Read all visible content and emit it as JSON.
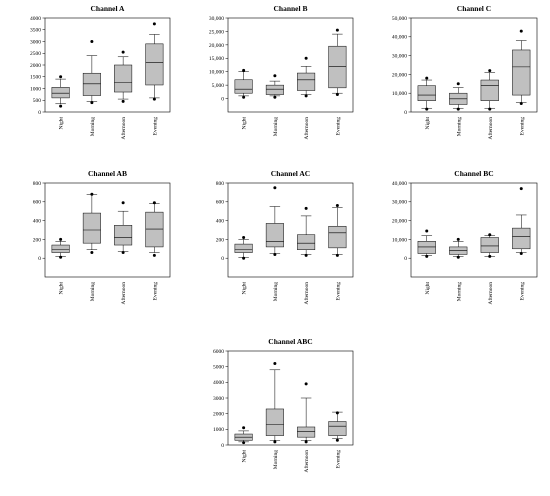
{
  "figure": {
    "chart_data": [
      {
        "type": "box",
        "title": "Channel A",
        "categories": [
          "Night",
          "Morning",
          "Afternoon",
          "Evening"
        ],
        "ylim": [
          0,
          4000
        ],
        "yticks": [
          0,
          500,
          1000,
          1500,
          2000,
          2500,
          3000,
          3500,
          4000
        ],
        "ytick_labels": [
          "0",
          "500",
          "1000",
          "1500",
          "2000",
          "2500",
          "3000",
          "3500",
          "4000"
        ],
        "boxes": [
          {
            "whisker_low": 350,
            "q1": 600,
            "median": 800,
            "q3": 1050,
            "whisker_high": 1400,
            "outliers": [
              250,
              1500
            ]
          },
          {
            "whisker_low": 450,
            "q1": 700,
            "median": 1200,
            "q3": 1650,
            "whisker_high": 2400,
            "outliers": [
              400,
              3000
            ]
          },
          {
            "whisker_low": 550,
            "q1": 850,
            "median": 1250,
            "q3": 2000,
            "whisker_high": 2350,
            "outliers": [
              450,
              2550
            ]
          },
          {
            "whisker_low": 600,
            "q1": 1150,
            "median": 2100,
            "q3": 2900,
            "whisker_high": 3300,
            "outliers": [
              550,
              3750
            ]
          }
        ]
      },
      {
        "type": "box",
        "title": "Channel B",
        "categories": [
          "Night",
          "Morning",
          "Afternoon",
          "Evening"
        ],
        "ylim": [
          -5000,
          30000
        ],
        "yticks": [
          0,
          5000,
          10000,
          15000,
          20000,
          25000,
          30000
        ],
        "ytick_labels": [
          "0",
          "5,000",
          "10,000",
          "15,000",
          "20,000",
          "25,000",
          "30,000"
        ],
        "boxes": [
          {
            "whisker_low": 1000,
            "q1": 2000,
            "median": 3500,
            "q3": 7000,
            "whisker_high": 10000,
            "outliers": [
              500,
              10500
            ]
          },
          {
            "whisker_low": 1000,
            "q1": 1500,
            "median": 3500,
            "q3": 5000,
            "whisker_high": 6500,
            "outliers": [
              500,
              8500
            ]
          },
          {
            "whisker_low": 1500,
            "q1": 3000,
            "median": 7000,
            "q3": 9500,
            "whisker_high": 12000,
            "outliers": [
              1000,
              15000
            ]
          },
          {
            "whisker_low": 2000,
            "q1": 4000,
            "median": 12000,
            "q3": 19500,
            "whisker_high": 24000,
            "outliers": [
              1500,
              25500
            ]
          }
        ]
      },
      {
        "type": "box",
        "title": "Channel C",
        "categories": [
          "Night",
          "Morning",
          "Afternoon",
          "Evening"
        ],
        "ylim": [
          0,
          50000
        ],
        "yticks": [
          0,
          10000,
          20000,
          30000,
          40000,
          50000
        ],
        "ytick_labels": [
          "0",
          "10,000",
          "20,000",
          "30,000",
          "40,000",
          "50,000"
        ],
        "boxes": [
          {
            "whisker_low": 2000,
            "q1": 6000,
            "median": 9000,
            "q3": 14000,
            "whisker_high": 17000,
            "outliers": [
              1500,
              18000
            ]
          },
          {
            "whisker_low": 2000,
            "q1": 4000,
            "median": 7000,
            "q3": 10000,
            "whisker_high": 13000,
            "outliers": [
              1500,
              15000
            ]
          },
          {
            "whisker_low": 2000,
            "q1": 6000,
            "median": 14000,
            "q3": 17000,
            "whisker_high": 21000,
            "outliers": [
              1500,
              22000
            ]
          },
          {
            "whisker_low": 5000,
            "q1": 9000,
            "median": 24000,
            "q3": 33000,
            "whisker_high": 38000,
            "outliers": [
              4500,
              43000
            ]
          }
        ]
      },
      {
        "type": "box",
        "title": "Channel AB",
        "categories": [
          "Night",
          "Morning",
          "Afternoon",
          "Evening"
        ],
        "ylim": [
          -200,
          800
        ],
        "yticks": [
          0,
          200,
          400,
          600,
          800
        ],
        "ytick_labels": [
          "0",
          "200",
          "400",
          "600",
          "800"
        ],
        "boxes": [
          {
            "whisker_low": 20,
            "q1": 60,
            "median": 90,
            "q3": 140,
            "whisker_high": 180,
            "outliers": [
              10,
              200
            ]
          },
          {
            "whisker_low": 90,
            "q1": 160,
            "median": 300,
            "q3": 480,
            "whisker_high": 680,
            "outliers": [
              60,
              680
            ]
          },
          {
            "whisker_low": 70,
            "q1": 140,
            "median": 220,
            "q3": 350,
            "whisker_high": 500,
            "outliers": [
              60,
              590
            ]
          },
          {
            "whisker_low": 60,
            "q1": 120,
            "median": 310,
            "q3": 490,
            "whisker_high": 580,
            "outliers": [
              30,
              590
            ]
          }
        ]
      },
      {
        "type": "box",
        "title": "Channel AC",
        "categories": [
          "Night",
          "Morning",
          "Afternoon",
          "Evening"
        ],
        "ylim": [
          -200,
          800
        ],
        "yticks": [
          0,
          200,
          400,
          600,
          800
        ],
        "ytick_labels": [
          "0",
          "200",
          "400",
          "600",
          "800"
        ],
        "boxes": [
          {
            "whisker_low": 10,
            "q1": 60,
            "median": 90,
            "q3": 150,
            "whisker_high": 200,
            "outliers": [
              0,
              220
            ]
          },
          {
            "whisker_low": 50,
            "q1": 120,
            "median": 180,
            "q3": 370,
            "whisker_high": 550,
            "outliers": [
              40,
              750
            ]
          },
          {
            "whisker_low": 40,
            "q1": 90,
            "median": 160,
            "q3": 250,
            "whisker_high": 450,
            "outliers": [
              30,
              530
            ]
          },
          {
            "whisker_low": 40,
            "q1": 110,
            "median": 270,
            "q3": 340,
            "whisker_high": 540,
            "outliers": [
              30,
              560
            ]
          }
        ]
      },
      {
        "type": "box",
        "title": "Channel BC",
        "categories": [
          "Night",
          "Morning",
          "Afternoon",
          "Evening"
        ],
        "ylim": [
          -10000,
          40000
        ],
        "yticks": [
          0,
          10000,
          20000,
          30000,
          40000
        ],
        "ytick_labels": [
          "0",
          "10,000",
          "20,000",
          "30,000",
          "40,000"
        ],
        "boxes": [
          {
            "whisker_low": 1500,
            "q1": 2500,
            "median": 6000,
            "q3": 9000,
            "whisker_high": 12000,
            "outliers": [
              1000,
              14500
            ]
          },
          {
            "whisker_low": 1000,
            "q1": 2000,
            "median": 4000,
            "q3": 6000,
            "whisker_high": 9000,
            "outliers": [
              500,
              10000
            ]
          },
          {
            "whisker_low": 1000,
            "q1": 3000,
            "median": 6500,
            "q3": 11000,
            "whisker_high": 12000,
            "outliers": [
              1000,
              12500
            ]
          },
          {
            "whisker_low": 3000,
            "q1": 5000,
            "median": 11500,
            "q3": 16000,
            "whisker_high": 23000,
            "outliers": [
              2500,
              37000
            ]
          }
        ]
      },
      {
        "type": "box",
        "title": "Channel ABC",
        "categories": [
          "Night",
          "Morning",
          "Afternoon",
          "Evening"
        ],
        "ylim": [
          0,
          6000
        ],
        "yticks": [
          0,
          1000,
          2000,
          3000,
          4000,
          5000,
          6000
        ],
        "ytick_labels": [
          "0",
          "1000",
          "2000",
          "3000",
          "4000",
          "5000",
          "6000"
        ],
        "boxes": [
          {
            "whisker_low": 200,
            "q1": 300,
            "median": 500,
            "q3": 700,
            "whisker_high": 900,
            "outliers": [
              150,
              1100
            ]
          },
          {
            "whisker_low": 300,
            "q1": 600,
            "median": 1300,
            "q3": 2300,
            "whisker_high": 4800,
            "outliers": [
              200,
              5200
            ]
          },
          {
            "whisker_low": 300,
            "q1": 500,
            "median": 850,
            "q3": 1150,
            "whisker_high": 3000,
            "outliers": [
              200,
              3900
            ]
          },
          {
            "whisker_low": 400,
            "q1": 600,
            "median": 1200,
            "q3": 1500,
            "whisker_high": 2100,
            "outliers": [
              300,
              2050
            ]
          }
        ]
      }
    ]
  }
}
